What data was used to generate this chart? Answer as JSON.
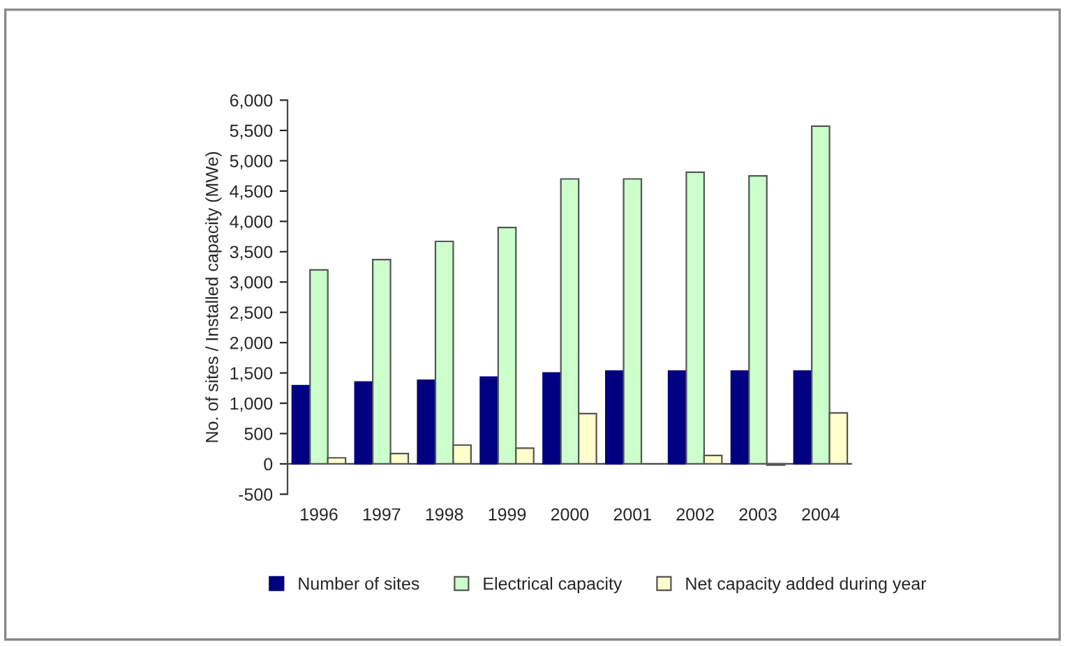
{
  "chart_data": {
    "type": "bar",
    "ylabel": "No. of sites / Installed capacity (MWe)",
    "categories": [
      "1996",
      "1997",
      "1998",
      "1999",
      "2000",
      "2001",
      "2002",
      "2003",
      "2004"
    ],
    "series": [
      {
        "name": "Number of sites",
        "color": "#000080",
        "values": [
          1290,
          1350,
          1380,
          1430,
          1500,
          1530,
          1530,
          1530,
          1530
        ]
      },
      {
        "name": "Electrical capacity",
        "color": "#ccffcc",
        "values": [
          3200,
          3370,
          3670,
          3900,
          4700,
          4700,
          4810,
          4750,
          5570
        ]
      },
      {
        "name": "Net capacity added during year",
        "color": "#ffffcc",
        "values": [
          100,
          170,
          310,
          260,
          830,
          null,
          140,
          -20,
          840
        ]
      }
    ],
    "ylim": [
      -500,
      6000
    ],
    "yticks": [
      {
        "value": -500,
        "label": "-500"
      },
      {
        "value": 0,
        "label": "0"
      },
      {
        "value": 500,
        "label": "500"
      },
      {
        "value": 1000,
        "label": "1,000"
      },
      {
        "value": 1500,
        "label": "1,500"
      },
      {
        "value": 2000,
        "label": "2,000"
      },
      {
        "value": 2500,
        "label": "2,500"
      },
      {
        "value": 3000,
        "label": "3,000"
      },
      {
        "value": 3500,
        "label": "3,500"
      },
      {
        "value": 4000,
        "label": "4,000"
      },
      {
        "value": 4500,
        "label": "4,500"
      },
      {
        "value": 5000,
        "label": "5,000"
      },
      {
        "value": 5500,
        "label": "5,500"
      },
      {
        "value": 6000,
        "label": "6,000"
      }
    ],
    "grid": false,
    "legend": "bottom"
  }
}
